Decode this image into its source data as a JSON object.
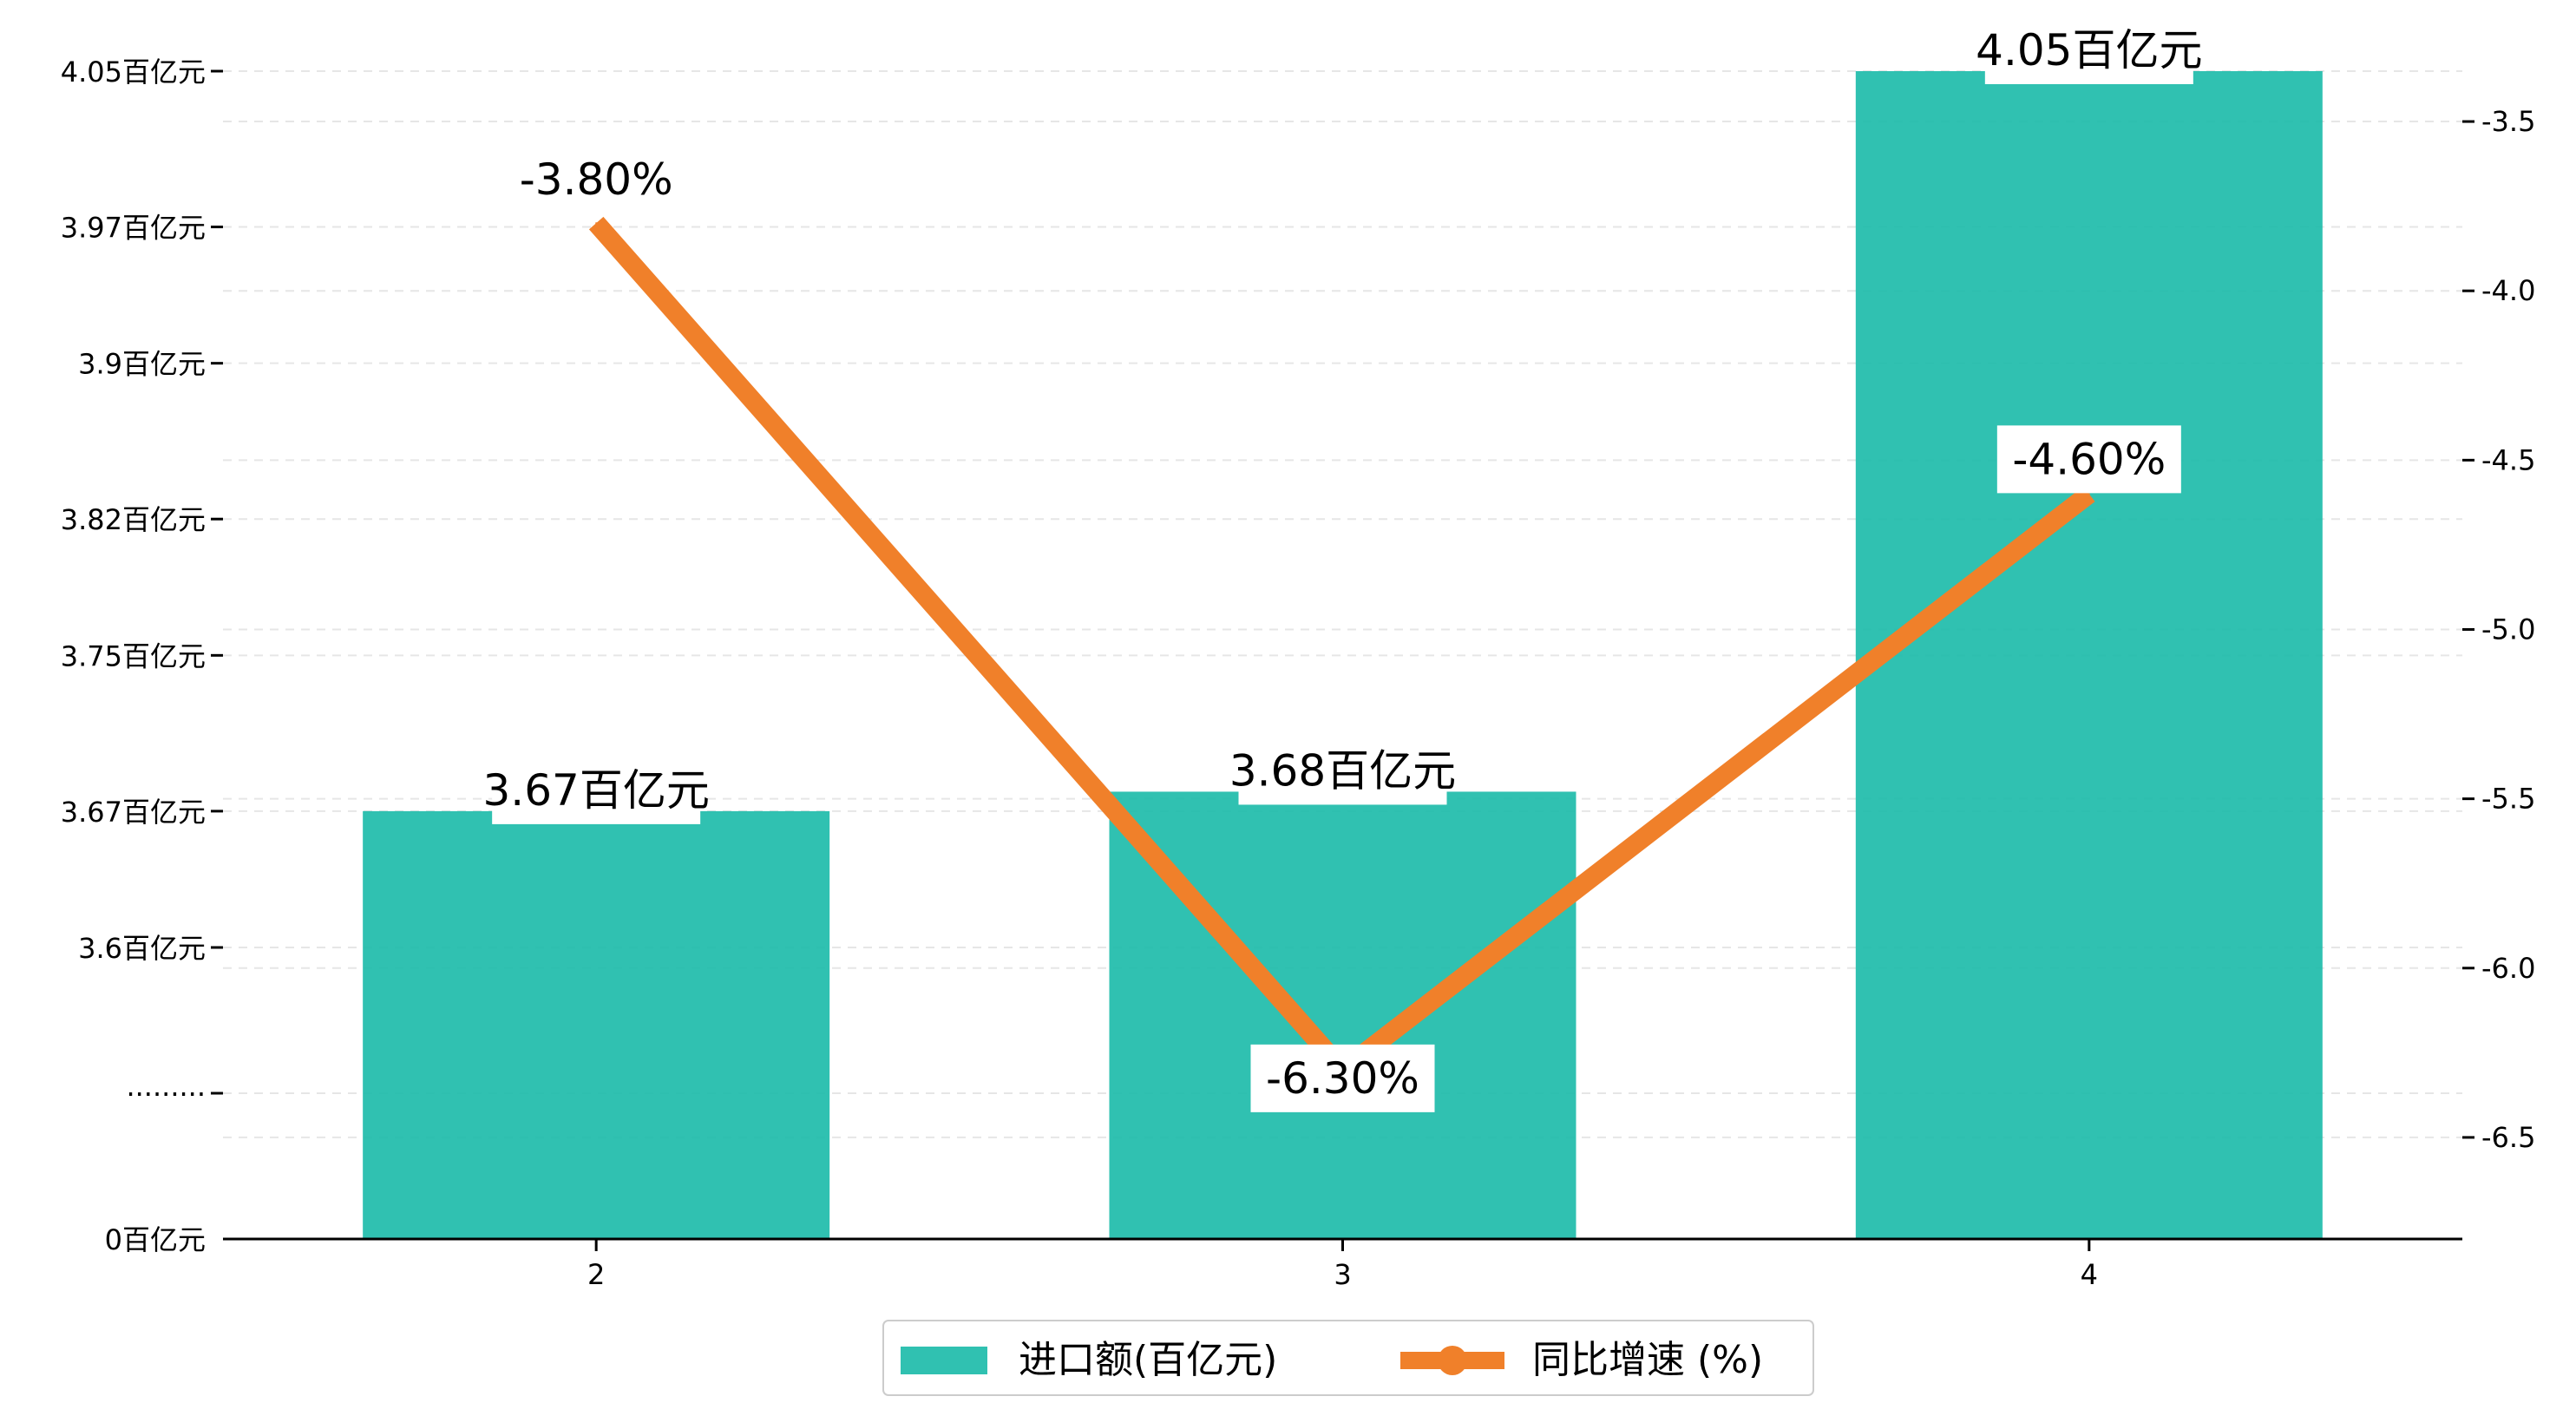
{
  "chart_data": {
    "type": "bar",
    "categories": [
      "2",
      "3",
      "4"
    ],
    "series": [
      {
        "name": "进口额(百亿元)",
        "kind": "bar",
        "axis": "left",
        "values": [
          3.67,
          3.68,
          4.05
        ],
        "labels": [
          "3.67百亿元",
          "3.68百亿元",
          "4.05百亿元"
        ],
        "color": "#1abaa8"
      },
      {
        "name": "同比增速 (%)",
        "kind": "line",
        "axis": "right",
        "values": [
          -3.8,
          -6.3,
          -4.6
        ],
        "labels": [
          "-3.80%",
          "-6.30%",
          "-4.60%"
        ],
        "color": "#f0802a"
      }
    ],
    "left_axis": {
      "ticks": [
        0,
        3.6,
        3.67,
        3.75,
        3.82,
        3.9,
        3.97,
        4.05
      ],
      "tick_labels": [
        "0百亿元",
        "·········",
        "3.6百亿元",
        "3.67百亿元",
        "3.75百亿元",
        "3.82百亿元",
        "3.9百亿元",
        "3.97百亿元",
        "4.05百亿元"
      ],
      "scale": "broken"
    },
    "right_axis": {
      "ylim": [
        -6.8,
        -3.3
      ],
      "ticks": [
        -6.5,
        -6.0,
        -5.5,
        -5.0,
        -4.5,
        -4.0,
        -3.5
      ],
      "tick_labels": [
        "-6.5",
        "-6.0",
        "-5.5",
        "-5.0",
        "-4.5",
        "-4.0",
        "-3.5"
      ]
    },
    "grid": true,
    "legend_position": "bottom-center"
  }
}
